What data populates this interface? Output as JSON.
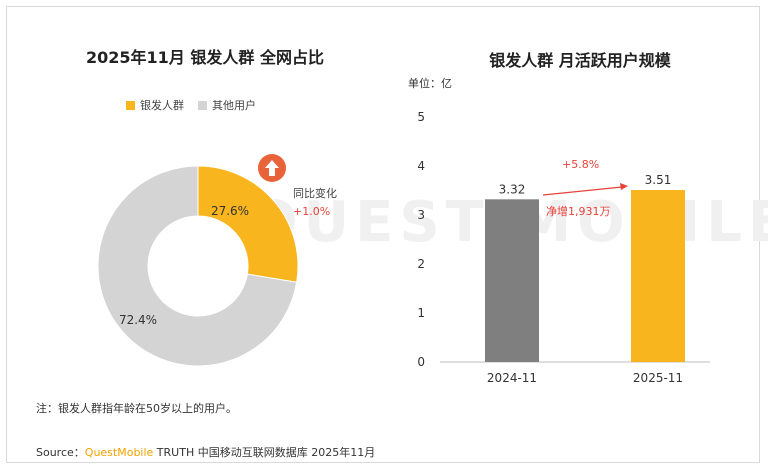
{
  "left_chart": {
    "title": "2025年11月 银发人群 全网占比",
    "legend": [
      {
        "label": "银发人群",
        "color": "#f9b51e"
      },
      {
        "label": "其他用户",
        "color": "#d4d4d4"
      }
    ],
    "yoy_label": "同比变化",
    "yoy_value": "+1.0%"
  },
  "right_chart": {
    "title": "银发人群 月活跃用户规模",
    "unit_label": "单位：亿",
    "growth_pct": "+5.8%",
    "growth_abs": "净增1,931万"
  },
  "note": "注：银发人群指年龄在50岁以上的用户。",
  "source": {
    "prefix": "Source：",
    "brand": "QuestMobile",
    "suffix": " TRUTH 中国移动互联网数据库 2025年11月"
  },
  "watermark": "QUEST MOBILE",
  "chart_data": [
    {
      "type": "pie",
      "title": "2025年11月 银发人群 全网占比",
      "categories": [
        "银发人群",
        "其他用户"
      ],
      "values": [
        27.6,
        72.4
      ],
      "value_labels": [
        "27.6%",
        "72.4%"
      ],
      "colors": [
        "#f9b51e",
        "#d4d4d4"
      ],
      "annotation": {
        "label": "同比变化",
        "value": "+1.0%"
      }
    },
    {
      "type": "bar",
      "title": "银发人群 月活跃用户规模",
      "ylabel": "单位：亿",
      "categories": [
        "2024-11",
        "2025-11"
      ],
      "values": [
        3.32,
        3.51
      ],
      "value_labels": [
        "3.32",
        "3.51"
      ],
      "colors": [
        "#7f7f7f",
        "#f9b51e"
      ],
      "ylim": [
        0,
        5
      ],
      "yticks": [
        "0",
        "1",
        "2",
        "3",
        "4",
        "5"
      ],
      "grid": false,
      "annotations": [
        "+5.8%",
        "净增1,931万"
      ]
    }
  ]
}
